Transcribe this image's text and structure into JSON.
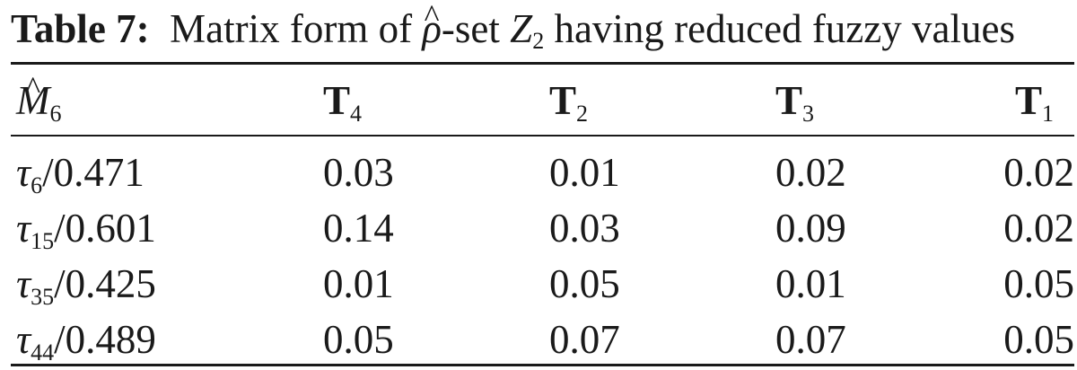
{
  "caption": {
    "label": "Table 7:",
    "text_before": "Matrix form of",
    "rho": "ρ",
    "text_middle": "-set",
    "set_symbol": "Z",
    "set_subscript": "2",
    "text_after": "having reduced fuzzy values"
  },
  "header": {
    "corner_symbol": "M",
    "corner_subscript": "6",
    "columns": [
      {
        "symbol": "T",
        "subscript": "4"
      },
      {
        "symbol": "T",
        "subscript": "2"
      },
      {
        "symbol": "T",
        "subscript": "3"
      },
      {
        "symbol": "T",
        "subscript": "1"
      }
    ]
  },
  "rows": [
    {
      "symbol": "τ",
      "subscript": "6",
      "suffix": "/0.471",
      "values": [
        "0.03",
        "0.01",
        "0.02",
        "0.02"
      ]
    },
    {
      "symbol": "τ",
      "subscript": "15",
      "suffix": "/0.601",
      "values": [
        "0.14",
        "0.03",
        "0.09",
        "0.02"
      ]
    },
    {
      "symbol": "τ",
      "subscript": "35",
      "suffix": "/0.425",
      "values": [
        "0.01",
        "0.05",
        "0.01",
        "0.05"
      ]
    },
    {
      "symbol": "τ",
      "subscript": "44",
      "suffix": "/0.489",
      "values": [
        "0.05",
        "0.07",
        "0.07",
        "0.05"
      ]
    }
  ]
}
